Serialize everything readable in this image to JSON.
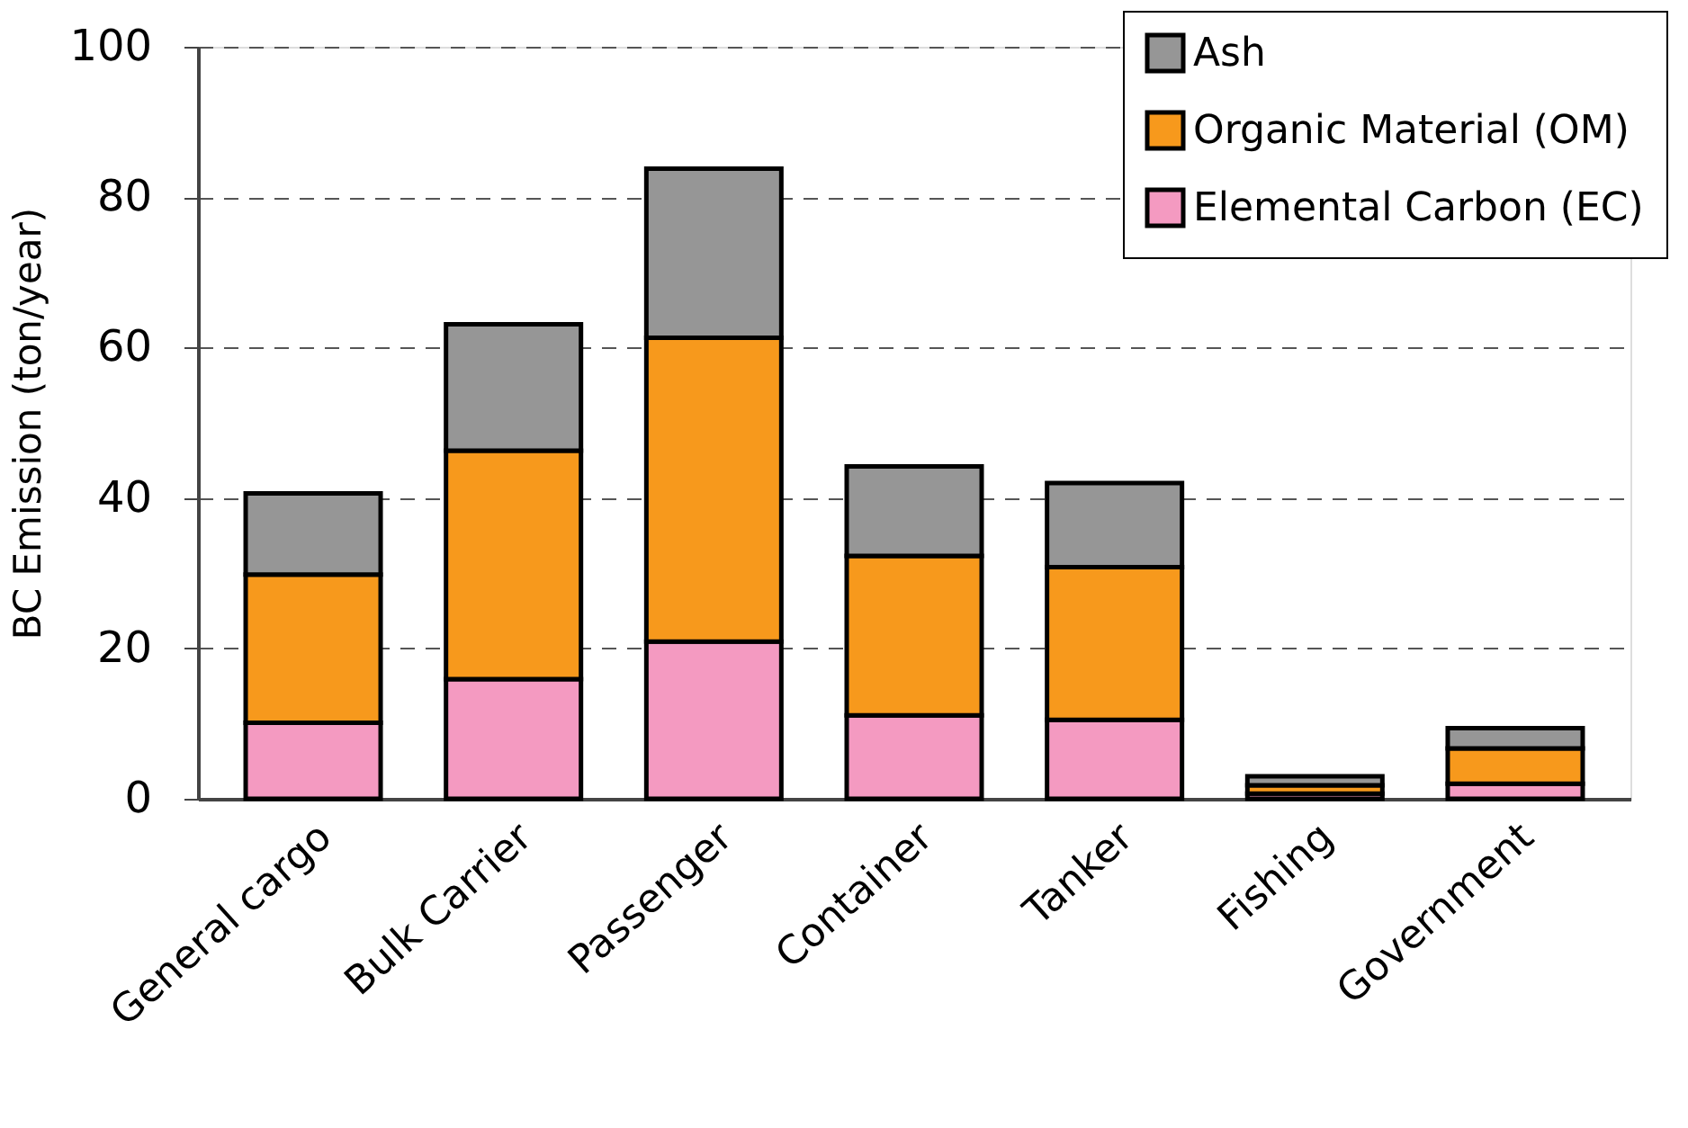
{
  "chart_data": {
    "type": "bar",
    "stacked": true,
    "ylabel": "BC Emission (ton/year)",
    "categories": [
      "General cargo",
      "Bulk Carrier",
      "Passenger",
      "Container",
      "Tanker",
      "Fishing",
      "Government"
    ],
    "series": [
      {
        "name": "Elemental Carbon (EC)",
        "color": "#f49ac1",
        "values": [
          10.1,
          15.9,
          20.9,
          11.1,
          10.5,
          0.7,
          2.0
        ]
      },
      {
        "name": "Organic Material (OM)",
        "color": "#f7991c",
        "values": [
          19.7,
          30.4,
          40.4,
          21.2,
          20.3,
          1.1,
          4.7
        ]
      },
      {
        "name": "Ash",
        "color": "#969696",
        "values": [
          10.8,
          16.8,
          22.5,
          11.9,
          11.2,
          1.2,
          2.7
        ]
      }
    ],
    "ylim": [
      0,
      100
    ],
    "yticks": [
      0,
      20,
      40,
      60,
      80,
      100
    ],
    "grid": "y",
    "legend": "top right"
  }
}
